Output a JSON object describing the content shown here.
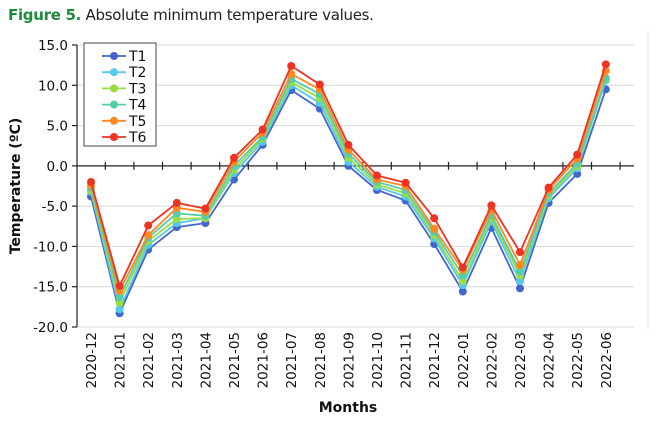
{
  "caption": {
    "figure_label": "Figure 5.",
    "text": " Absolute minimum temperature values."
  },
  "chart_data": {
    "type": "line",
    "title": "",
    "xlabel": "Months",
    "ylabel": "Temperature (ºC)",
    "ylim": [
      -20.0,
      15.0
    ],
    "yticks": [
      "15.0",
      "10.0",
      "5.0",
      "0.0",
      "-5.0",
      "-10.0",
      "-15.0",
      "-20.0"
    ],
    "ytick_values": [
      15,
      10,
      5,
      0,
      -5,
      -10,
      -15,
      -20
    ],
    "grid": true,
    "legend_position": "top-left",
    "categories": [
      "2020-12",
      "2021-01",
      "2021-02",
      "2021-03",
      "2021-04",
      "2021-05",
      "2021-06",
      "2021-07",
      "2021-08",
      "2021-09",
      "2021-10",
      "2021-11",
      "2021-12",
      "2022-01",
      "2022-02",
      "2022-03",
      "2022-04",
      "2022-05",
      "2022-06"
    ],
    "series": [
      {
        "name": "T1",
        "color": "#4466cc",
        "values": [
          -3.8,
          -18.3,
          -10.4,
          -7.6,
          -7.1,
          -1.7,
          2.6,
          9.4,
          7.1,
          0.0,
          -3.0,
          -4.3,
          -9.7,
          -15.6,
          -7.7,
          -15.2,
          -4.6,
          -1.0,
          9.5
        ]
      },
      {
        "name": "T2",
        "color": "#55c8ee",
        "values": [
          -3.2,
          -17.8,
          -9.8,
          -7.1,
          -6.5,
          -0.9,
          3.0,
          10.0,
          7.8,
          0.5,
          -2.6,
          -3.8,
          -9.0,
          -14.8,
          -6.9,
          -14.3,
          -4.0,
          -0.3,
          10.6
        ]
      },
      {
        "name": "T3",
        "color": "#99dd44",
        "values": [
          -3.0,
          -17.0,
          -9.3,
          -6.6,
          -6.5,
          -0.5,
          3.4,
          10.4,
          8.4,
          1.0,
          -2.3,
          -3.4,
          -8.6,
          -14.3,
          -6.5,
          -13.6,
          -3.7,
          0.0,
          10.8
        ]
      },
      {
        "name": "T4",
        "color": "#55ccaa",
        "values": [
          -2.7,
          -16.3,
          -8.9,
          -5.9,
          -6.2,
          0.0,
          3.6,
          10.8,
          8.9,
          1.5,
          -2.0,
          -3.0,
          -8.2,
          -13.6,
          -6.1,
          -13.1,
          -3.4,
          0.3,
          10.9
        ]
      },
      {
        "name": "T5",
        "color": "#ff8822",
        "values": [
          -2.4,
          -15.5,
          -8.6,
          -5.2,
          -5.7,
          0.5,
          4.1,
          11.4,
          9.5,
          2.0,
          -1.7,
          -2.5,
          -7.8,
          -12.9,
          -5.5,
          -12.3,
          -3.0,
          0.9,
          11.8
        ]
      },
      {
        "name": "T6",
        "color": "#ee3322",
        "values": [
          -2.0,
          -14.9,
          -7.4,
          -4.6,
          -5.3,
          1.0,
          4.5,
          12.4,
          10.1,
          2.6,
          -1.2,
          -2.1,
          -6.5,
          -12.6,
          -4.9,
          -10.7,
          -2.7,
          1.4,
          12.6
        ]
      }
    ]
  }
}
